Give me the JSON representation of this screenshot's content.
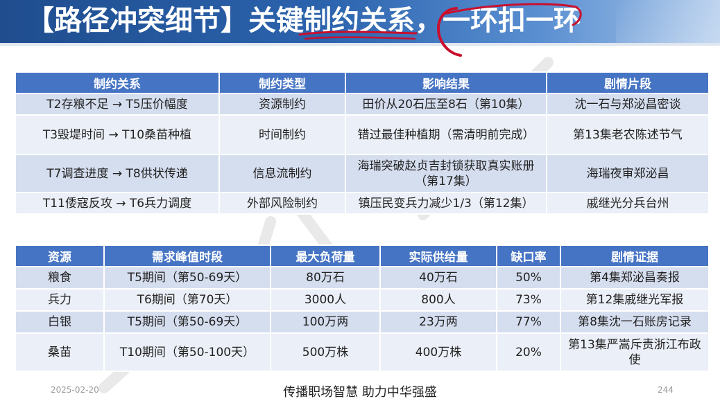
{
  "title": "【路径冲突细节】关键制约关系，一环扣一环",
  "table1": {
    "headers": [
      "制约关系",
      "制约类型",
      "影响结果",
      "剧情片段"
    ],
    "rows": [
      [
        "T2存粮不足 → T5压价幅度",
        "资源制约",
        "田价从20石压至8石（第10集）",
        "沈一石与郑泌昌密谈"
      ],
      [
        "T3毁堤时间 → T10桑苗种植",
        "时间制约",
        "错过最佳种植期（需清明前完成）",
        "第13集老农陈述节气"
      ],
      [
        "T7调查进度 → T8供状传递",
        "信息流制约",
        "海瑞突破赵贞吉封锁获取真实账册（第17集）",
        "海瑞夜审郑泌昌"
      ],
      [
        "T11倭寇反攻 → T6兵力调度",
        "外部风险制约",
        "镇压民变兵力减少1/3（第12集）",
        "戚继光分兵台州"
      ]
    ]
  },
  "table2": {
    "headers": [
      "资源",
      "需求峰值时段",
      "最大负荷量",
      "实际供给量",
      "缺口率",
      "剧情证据"
    ],
    "rows": [
      [
        "粮食",
        "T5期间（第50-69天）",
        "80万石",
        "40万石",
        "50%",
        "第4集郑泌昌奏报"
      ],
      [
        "兵力",
        "T6期间（第70天）",
        "3000人",
        "800人",
        "73%",
        "第12集戚继光军报"
      ],
      [
        "白银",
        "T5期间（第50-69天）",
        "100万两",
        "23万两",
        "77%",
        "第8集沈一石账房记录"
      ],
      [
        "桑苗",
        "T10期间（第50-100天）",
        "500万株",
        "400万株",
        "20%",
        "第13集严嵩斥责浙江布政使"
      ]
    ]
  },
  "footer": {
    "date": "2025-02-20",
    "slogan": "传播职场智慧  助力中华强盛",
    "page": "244"
  },
  "colors": {
    "header_bg": "#2b63ad",
    "table_header": "#4674c4",
    "row_odd": "#d5deef",
    "row_even": "#ebeff7",
    "annotation": "#c8102e"
  }
}
